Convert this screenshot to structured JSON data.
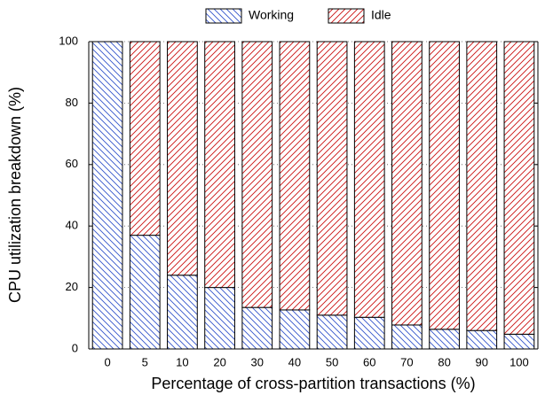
{
  "chart_data": {
    "type": "stacked_bar",
    "xlabel": "Percentage of cross-partition transactions (%)",
    "ylabel": "CPU utilization breakdown (%)",
    "categories": [
      "0",
      "5",
      "10",
      "20",
      "30",
      "40",
      "50",
      "60",
      "70",
      "80",
      "90",
      "100"
    ],
    "series": [
      {
        "name": "Working",
        "color": "#3355cc",
        "values": [
          100,
          37,
          24,
          20,
          13.5,
          12.7,
          11,
          10.3,
          7.8,
          6.4,
          6,
          4.8
        ]
      },
      {
        "name": "Idle",
        "color": "#cc1111",
        "values": [
          0,
          63,
          76,
          80,
          86.5,
          87.3,
          89,
          89.7,
          92.2,
          93.6,
          94,
          95.2
        ]
      }
    ],
    "ylim": [
      0,
      100
    ],
    "yticks": [
      0,
      20,
      40,
      60,
      80,
      100
    ],
    "grid": true,
    "legend": "top"
  }
}
